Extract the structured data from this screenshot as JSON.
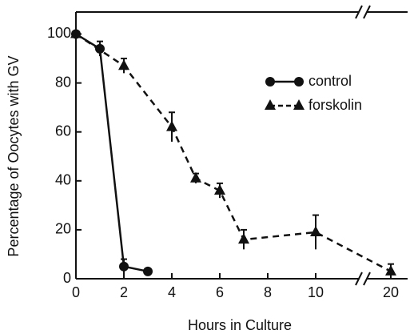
{
  "chart_data": {
    "type": "line",
    "xlabel": "Hours in Culture",
    "ylabel": "Percentage of Oocytes with GV",
    "xlim": [
      0,
      20.7
    ],
    "xbreak": [
      11.8,
      19
    ],
    "xticks": [
      0,
      2,
      4,
      6,
      8,
      10,
      20
    ],
    "ylim": [
      0,
      109
    ],
    "yticks": [
      0,
      20,
      40,
      60,
      80,
      100
    ],
    "series": [
      {
        "name": "control",
        "color": "#111111",
        "marker": "circle",
        "dash": false,
        "x": [
          0,
          1,
          2,
          3
        ],
        "values": [
          100,
          94,
          5,
          3
        ],
        "errors": [
          null,
          3,
          3,
          null
        ]
      },
      {
        "name": "forskolin",
        "color": "#111111",
        "marker": "triangle",
        "dash": true,
        "x": [
          0,
          2,
          4,
          5,
          6,
          7,
          10,
          20
        ],
        "values": [
          100,
          87,
          62,
          41,
          36,
          16,
          19,
          3
        ],
        "errors": [
          null,
          3,
          6,
          2,
          3,
          4,
          7,
          3
        ]
      }
    ]
  }
}
